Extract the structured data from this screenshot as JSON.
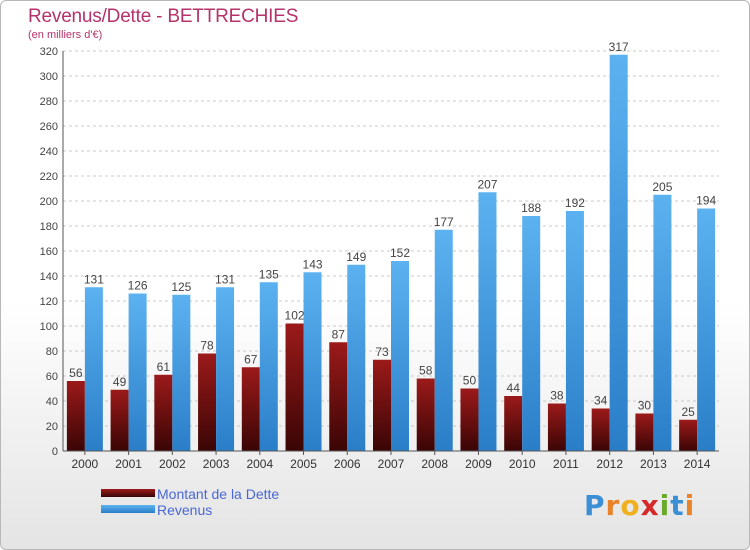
{
  "title": "Revenus/Dette - BETTRECHIES",
  "subtitle": "(en milliers d'€)",
  "logo": {
    "letters": [
      "P",
      "r",
      "o",
      "x",
      "i",
      "t",
      "i"
    ]
  },
  "colors": {
    "debt": "#7a1010",
    "revenue": "#4aa3e6",
    "title": "#b5336a",
    "legend_text": "#4a67d6"
  },
  "chart_data": {
    "type": "bar",
    "categories": [
      "2000",
      "2001",
      "2002",
      "2003",
      "2004",
      "2005",
      "2006",
      "2007",
      "2008",
      "2009",
      "2010",
      "2011",
      "2012",
      "2013",
      "2014"
    ],
    "series": [
      {
        "name": "Montant de la Dette",
        "values": [
          56,
          49,
          61,
          78,
          67,
          102,
          87,
          73,
          58,
          50,
          44,
          38,
          34,
          30,
          25
        ]
      },
      {
        "name": "Revenus",
        "values": [
          131,
          126,
          125,
          131,
          135,
          143,
          149,
          152,
          177,
          207,
          188,
          192,
          317,
          205,
          194
        ]
      }
    ],
    "ylim": [
      0,
      320
    ],
    "yticks": [
      0,
      20,
      40,
      60,
      80,
      100,
      120,
      140,
      160,
      180,
      200,
      220,
      240,
      260,
      280,
      300,
      320
    ],
    "grid": true,
    "legend": "bottom-left"
  }
}
